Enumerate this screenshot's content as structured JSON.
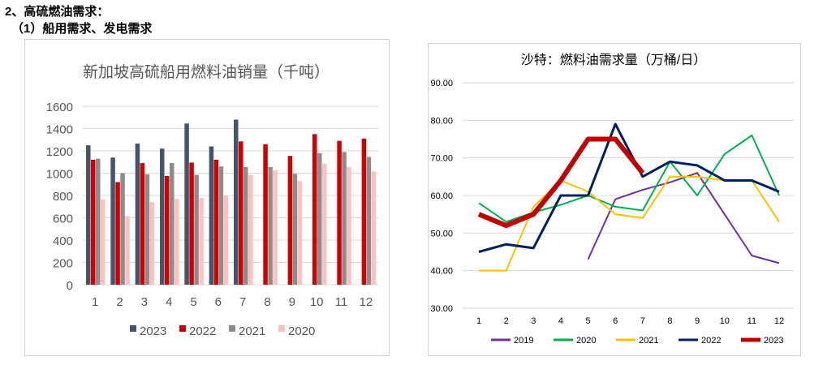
{
  "heading": "2、高硫燃油需求：",
  "subheading": "（1）船用需求、发电需求",
  "chart_data": [
    {
      "type": "bar",
      "title": "新加坡高硫船用燃料油销量（千吨）",
      "categories": [
        "1",
        "2",
        "3",
        "4",
        "5",
        "6",
        "7",
        "8",
        "9",
        "10",
        "11",
        "12"
      ],
      "ylim": [
        0,
        1600
      ],
      "yticks": [
        "0",
        "200",
        "400",
        "600",
        "800",
        "1000",
        "1200",
        "1400",
        "1600"
      ],
      "grid": true,
      "legend": "bottom",
      "series": [
        {
          "name": "2023",
          "color": "#44546a",
          "values": [
            1250,
            1140,
            1265,
            1220,
            1445,
            1240,
            1480,
            null,
            null,
            null,
            null,
            null
          ]
        },
        {
          "name": "2022",
          "color": "#d00000",
          "values": [
            1120,
            920,
            1090,
            975,
            1095,
            1120,
            1285,
            1260,
            1155,
            1350,
            1290,
            1310
          ]
        },
        {
          "name": "2021",
          "color": "#8c8c8c",
          "values": [
            1130,
            1000,
            990,
            1090,
            985,
            1060,
            1055,
            1055,
            995,
            1180,
            1190,
            1145
          ]
        },
        {
          "name": "2020",
          "color": "#ffc0c0",
          "values": [
            765,
            615,
            740,
            770,
            780,
            800,
            985,
            1025,
            930,
            1085,
            1055,
            1015
          ]
        }
      ]
    },
    {
      "type": "line",
      "title": "沙特：燃料油需求量（万桶/日）",
      "categories": [
        "1",
        "2",
        "3",
        "4",
        "5",
        "6",
        "7",
        "8",
        "9",
        "10",
        "11",
        "12"
      ],
      "ylim": [
        30,
        90
      ],
      "yticks": [
        "30.00",
        "40.00",
        "50.00",
        "60.00",
        "70.00",
        "80.00",
        "90.00"
      ],
      "grid": true,
      "legend": "bottom",
      "series": [
        {
          "name": "2019",
          "color": "#7030a0",
          "width": 2,
          "values": [
            null,
            null,
            null,
            null,
            43,
            59,
            61.5,
            63.5,
            66,
            55,
            44,
            42
          ]
        },
        {
          "name": "2020",
          "color": "#00b050",
          "width": 2,
          "values": [
            58,
            53,
            55.5,
            57.5,
            60,
            57,
            56,
            69,
            60,
            71,
            76,
            60
          ]
        },
        {
          "name": "2021",
          "color": "#ffc000",
          "width": 2,
          "values": [
            40,
            40,
            57,
            64,
            61,
            55,
            54,
            65,
            65,
            64,
            64,
            53
          ]
        },
        {
          "name": "2022",
          "color": "#002060",
          "width": 3,
          "values": [
            45,
            47,
            46,
            60,
            60,
            79,
            65,
            69,
            68,
            64,
            64,
            61
          ]
        },
        {
          "name": "2023",
          "color": "#c00000",
          "width": 6,
          "values": [
            55,
            52,
            55,
            64,
            75,
            75,
            66,
            null,
            null,
            null,
            null,
            null
          ]
        }
      ]
    }
  ]
}
